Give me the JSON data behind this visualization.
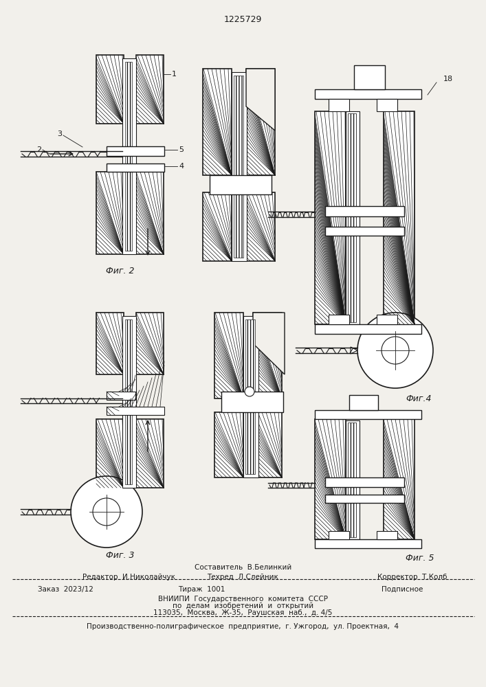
{
  "title_number": "1225729",
  "background_color": "#f2f0eb",
  "line_color": "#1a1a1a",
  "fig_label_2": "Фиг. 2",
  "fig_label_3": "Фиг. 3",
  "fig_label_4": "Фиг.4",
  "fig_label_5": "Фиг. 5",
  "label_18": "18",
  "footer": {
    "line1_center": "Составитель  В.Белинкий",
    "line2_left": "Редактор  И.Николайчук",
    "line2_center": "Техред  Л.Слейник",
    "line2_right": "Корректор  Т.Колб",
    "line3_left": "Заказ  2023/12",
    "line3_center": "Тираж  1001",
    "line3_right": "Подписное",
    "line4": "ВНИИПИ  Государственного  комитета  СССР",
    "line5": "по  делам  изобретений  и  открытий",
    "line6": "113035,  Москва,  Ж-35,  Раушская  наб.,  д. 4/5",
    "line7": "Производственно-полиграфическое  предприятие,  г. Ужгород,  ул. Проектная,  4"
  }
}
